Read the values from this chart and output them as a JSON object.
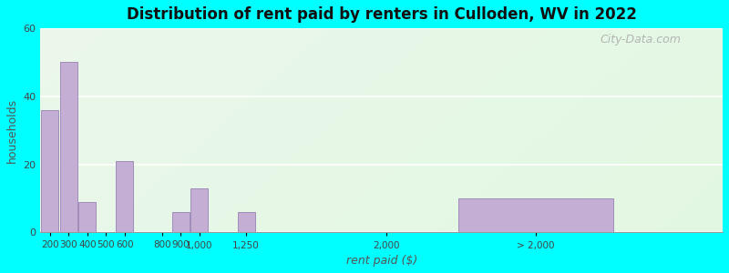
{
  "title": "Distribution of rent paid by renters in Culloden, WV in 2022",
  "xlabel": "rent paid ($)",
  "ylabel": "households",
  "bar_color": "#c4aed4",
  "bar_edge_color": "#a08cba",
  "background_color": "#00ffff",
  "categories": [
    "200",
    "300",
    "400",
    "500",
    "600",
    "800",
    "900",
    "1,000",
    "1,250",
    "2,000",
    "> 2,000"
  ],
  "x_values": [
    200,
    300,
    400,
    500,
    600,
    800,
    900,
    1000,
    1250,
    2000,
    2800
  ],
  "bar_widths": [
    100,
    100,
    100,
    100,
    100,
    100,
    100,
    100,
    100,
    100,
    900
  ],
  "values": [
    36,
    50,
    9,
    0,
    21,
    0,
    6,
    13,
    6,
    0,
    10
  ],
  "ylim": [
    0,
    60
  ],
  "yticks": [
    0,
    20,
    40,
    60
  ],
  "xlim": [
    150,
    3800
  ],
  "xtick_positions": [
    200,
    300,
    400,
    500,
    600,
    800,
    900,
    1000,
    1250,
    2000,
    2800
  ],
  "watermark": "City-Data.com"
}
